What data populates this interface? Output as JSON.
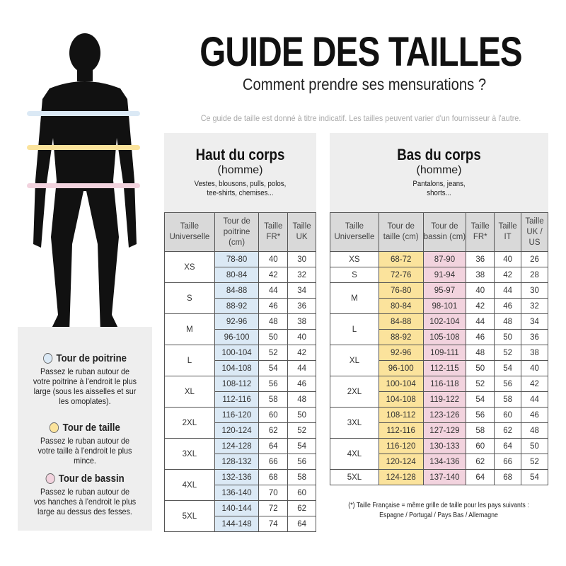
{
  "title": "GUIDE DES TAILLES",
  "subtitle": "Comment prendre ses mensurations ?",
  "note": "Ce guide de taille est donné à titre indicatif. Les tailles peuvent varier d'un fournisseur à l'autre.",
  "colors": {
    "chest": "#dbe9f5",
    "waist": "#fbe39c",
    "hip": "#f2d3de",
    "header": "#d9d9d9",
    "panel": "#eeeeee"
  },
  "top": {
    "heading": "Haut du corps",
    "sub": "(homme)",
    "desc": "Vestes, blousons, pulls, polos, tee-shirts, chemises...",
    "headers": [
      "Taille Universelle",
      "Tour de poitrine (cm)",
      "Taille FR*",
      "Taille UK"
    ],
    "groups": [
      {
        "size": "XS",
        "rows": [
          [
            "78-80",
            "40",
            "30"
          ],
          [
            "80-84",
            "42",
            "32"
          ]
        ]
      },
      {
        "size": "S",
        "rows": [
          [
            "84-88",
            "44",
            "34"
          ],
          [
            "88-92",
            "46",
            "36"
          ]
        ]
      },
      {
        "size": "M",
        "rows": [
          [
            "92-96",
            "48",
            "38"
          ],
          [
            "96-100",
            "50",
            "40"
          ]
        ]
      },
      {
        "size": "L",
        "rows": [
          [
            "100-104",
            "52",
            "42"
          ],
          [
            "104-108",
            "54",
            "44"
          ]
        ]
      },
      {
        "size": "XL",
        "rows": [
          [
            "108-112",
            "56",
            "46"
          ],
          [
            "112-116",
            "58",
            "48"
          ]
        ]
      },
      {
        "size": "2XL",
        "rows": [
          [
            "116-120",
            "60",
            "50"
          ],
          [
            "120-124",
            "62",
            "52"
          ]
        ]
      },
      {
        "size": "3XL",
        "rows": [
          [
            "124-128",
            "64",
            "54"
          ],
          [
            "128-132",
            "66",
            "56"
          ]
        ]
      },
      {
        "size": "4XL",
        "rows": [
          [
            "132-136",
            "68",
            "58"
          ],
          [
            "136-140",
            "70",
            "60"
          ]
        ]
      },
      {
        "size": "5XL",
        "rows": [
          [
            "140-144",
            "72",
            "62"
          ],
          [
            "144-148",
            "74",
            "64"
          ]
        ]
      }
    ]
  },
  "bottom": {
    "heading": "Bas du corps",
    "sub": "(homme)",
    "desc": "Pantalons, jeans, shorts...",
    "headers": [
      "Taille Universelle",
      "Tour de taille (cm)",
      "Tour de bassin (cm)",
      "Taille FR*",
      "Taille IT",
      "Taille UK / US"
    ],
    "groups": [
      {
        "size": "XS",
        "rows": [
          [
            "68-72",
            "87-90",
            "36",
            "40",
            "26"
          ]
        ]
      },
      {
        "size": "S",
        "rows": [
          [
            "72-76",
            "91-94",
            "38",
            "42",
            "28"
          ]
        ]
      },
      {
        "size": "M",
        "rows": [
          [
            "76-80",
            "95-97",
            "40",
            "44",
            "30"
          ],
          [
            "80-84",
            "98-101",
            "42",
            "46",
            "32"
          ]
        ]
      },
      {
        "size": "L",
        "rows": [
          [
            "84-88",
            "102-104",
            "44",
            "48",
            "34"
          ],
          [
            "88-92",
            "105-108",
            "46",
            "50",
            "36"
          ]
        ]
      },
      {
        "size": "XL",
        "rows": [
          [
            "92-96",
            "109-111",
            "48",
            "52",
            "38"
          ],
          [
            "96-100",
            "112-115",
            "50",
            "54",
            "40"
          ]
        ]
      },
      {
        "size": "2XL",
        "rows": [
          [
            "100-104",
            "116-118",
            "52",
            "56",
            "42"
          ],
          [
            "104-108",
            "119-122",
            "54",
            "58",
            "44"
          ]
        ]
      },
      {
        "size": "3XL",
        "rows": [
          [
            "108-112",
            "123-126",
            "56",
            "60",
            "46"
          ],
          [
            "112-116",
            "127-129",
            "58",
            "62",
            "48"
          ]
        ]
      },
      {
        "size": "4XL",
        "rows": [
          [
            "116-120",
            "130-133",
            "60",
            "64",
            "50"
          ],
          [
            "120-124",
            "134-136",
            "62",
            "66",
            "52"
          ]
        ]
      },
      {
        "size": "5XL",
        "rows": [
          [
            "124-128",
            "137-140",
            "64",
            "68",
            "54"
          ]
        ]
      }
    ]
  },
  "footnote": [
    "(*) Taille Française = même grille de taille pour les pays suivants :",
    "Espagne / Portugal / Pays Bas / Allemagne"
  ],
  "legend": [
    {
      "title": "Tour de poitrine",
      "text": "Passez le ruban autour de votre poitrine à l'endroit le plus large (sous les aisselles et sur les omoplates).",
      "color": "#dbe9f5"
    },
    {
      "title": "Tour de taille",
      "text": "Passez le ruban autour de votre taille à l'endroit le plus mince.",
      "color": "#fbe39c"
    },
    {
      "title": "Tour de bassin",
      "text": "Passez le ruban autour de vos hanches à l'endroit le plus large au dessus des fesses.",
      "color": "#f2d3de"
    }
  ]
}
